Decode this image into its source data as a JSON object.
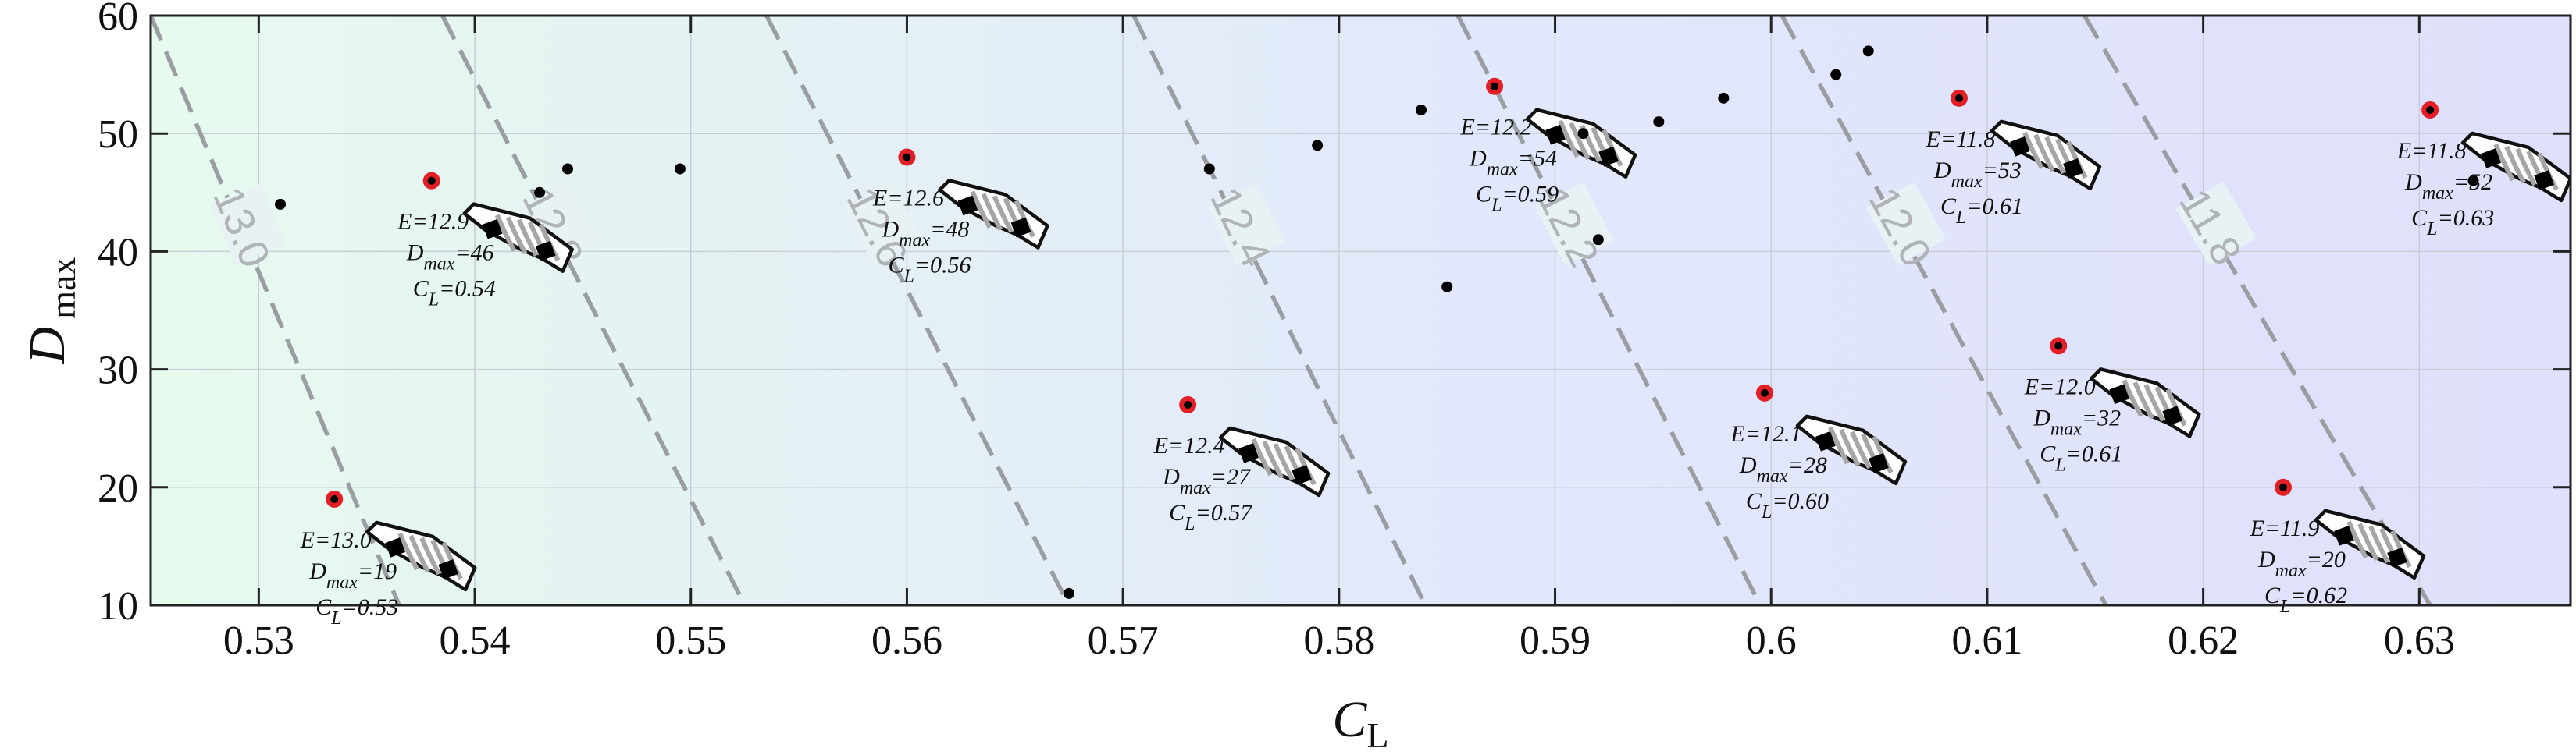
{
  "chart_data": {
    "type": "scatter",
    "xlabel": "C",
    "xlabel_sub": "L",
    "ylabel": "D",
    "ylabel_sub": "max",
    "xlim": [
      0.525,
      0.637
    ],
    "ylim": [
      10,
      60
    ],
    "grid": true,
    "x_ticks": [
      0.53,
      0.54,
      0.55,
      0.56,
      0.57,
      0.58,
      0.59,
      0.6,
      0.61,
      0.62,
      0.63
    ],
    "x_tick_labels": [
      "0.53",
      "0.54",
      "0.55",
      "0.56",
      "0.57",
      "0.58",
      "0.59",
      "0.6",
      "0.61",
      "0.62",
      "0.63"
    ],
    "y_ticks": [
      10,
      20,
      30,
      40,
      50,
      60
    ],
    "y_tick_labels": [
      "10",
      "20",
      "30",
      "40",
      "50",
      "60"
    ],
    "background_colors": [
      "#e6faee",
      "#e2e8fb",
      "#dfe0fb"
    ],
    "contour_color": "#9a9ea3",
    "contours": [
      {
        "label": "13.0",
        "x_top": 0.525,
        "x_bottom": 0.5365
      },
      {
        "label": "12.8",
        "x_top": 0.5385,
        "x_bottom": 0.5525
      },
      {
        "label": "12.6",
        "x_top": 0.5535,
        "x_bottom": 0.5675
      },
      {
        "label": "12.4",
        "x_top": 0.5705,
        "x_bottom": 0.584
      },
      {
        "label": "12.2",
        "x_top": 0.5855,
        "x_bottom": 0.5995
      },
      {
        "label": "12.0",
        "x_top": 0.6005,
        "x_bottom": 0.6155
      },
      {
        "label": "11.8",
        "x_top": 0.6145,
        "x_bottom": 0.6305
      }
    ],
    "points": [
      [
        0.531,
        44
      ],
      [
        0.543,
        45
      ],
      [
        0.5443,
        47
      ],
      [
        0.5495,
        47
      ],
      [
        0.5675,
        11
      ],
      [
        0.574,
        47
      ],
      [
        0.579,
        49
      ],
      [
        0.5838,
        52
      ],
      [
        0.585,
        37
      ],
      [
        0.5913,
        50
      ],
      [
        0.592,
        41
      ],
      [
        0.5948,
        51
      ],
      [
        0.5978,
        53
      ],
      [
        0.603,
        55
      ],
      [
        0.6045,
        57
      ],
      [
        0.6325,
        46
      ]
    ],
    "highlighted": [
      {
        "x": 0.5335,
        "y": 19,
        "E": "E=13.0",
        "D": "=19",
        "C": "=0.53"
      },
      {
        "x": 0.538,
        "y": 46,
        "E": "E=12.9",
        "D": "=46",
        "C": "=0.54"
      },
      {
        "x": 0.56,
        "y": 48,
        "E": "E=12.6",
        "D": "=48",
        "C": "=0.56"
      },
      {
        "x": 0.573,
        "y": 27,
        "E": "E=12.4",
        "D": "=27",
        "C": "=0.57"
      },
      {
        "x": 0.5872,
        "y": 54,
        "E": "E=12.2",
        "D": "=54",
        "C": "=0.59"
      },
      {
        "x": 0.5997,
        "y": 28,
        "E": "E=12.1",
        "D": "=28",
        "C": "=0.60"
      },
      {
        "x": 0.6087,
        "y": 53,
        "E": "E=11.8",
        "D": "=53",
        "C": "=0.61"
      },
      {
        "x": 0.6133,
        "y": 32,
        "E": "E=12.0",
        "D": "=32",
        "C": "=0.61"
      },
      {
        "x": 0.6237,
        "y": 20,
        "E": "E=11.9",
        "D": "=20",
        "C": "=0.62"
      },
      {
        "x": 0.6305,
        "y": 52,
        "E": "E=11.8",
        "D": "=52",
        "C": "=0.63"
      }
    ],
    "annotation_sub_D": "max",
    "annotation_sub_C": "L"
  }
}
